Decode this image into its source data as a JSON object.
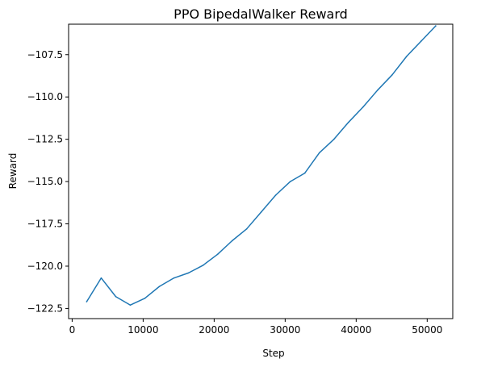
{
  "chart_data": {
    "type": "line",
    "title": "PPO BipedalWalker Reward",
    "xlabel": "Step",
    "ylabel": "Reward",
    "xlim": [
      -500,
      53600
    ],
    "ylim": [
      -123.1,
      -105.7
    ],
    "xticks": [
      0,
      10000,
      20000,
      30000,
      40000,
      50000
    ],
    "xtick_labels": [
      "0",
      "10000",
      "20000",
      "30000",
      "40000",
      "50000"
    ],
    "yticks": [
      -122.5,
      -120.0,
      -117.5,
      -115.0,
      -112.5,
      -110.0,
      -107.5
    ],
    "ytick_labels": [
      "−122.5",
      "−120.0",
      "−117.5",
      "−115.0",
      "−112.5",
      "−110.0",
      "−107.5"
    ],
    "grid": false,
    "series": [
      {
        "color": "#1f77b4",
        "x": [
          2048,
          4096,
          6144,
          8192,
          10240,
          12288,
          14336,
          16384,
          18432,
          20480,
          22528,
          24576,
          26624,
          28672,
          30720,
          32768,
          34816,
          36864,
          38912,
          40960,
          43008,
          45056,
          47104,
          49152,
          51200
        ],
        "y": [
          -122.1,
          -120.7,
          -121.8,
          -122.3,
          -121.9,
          -121.2,
          -120.7,
          -120.4,
          -119.95,
          -119.3,
          -118.5,
          -117.8,
          -116.8,
          -115.8,
          -115.0,
          -114.5,
          -113.3,
          -112.5,
          -111.5,
          -110.6,
          -109.6,
          -108.7,
          -107.6,
          -106.7,
          -105.8
        ]
      }
    ]
  }
}
